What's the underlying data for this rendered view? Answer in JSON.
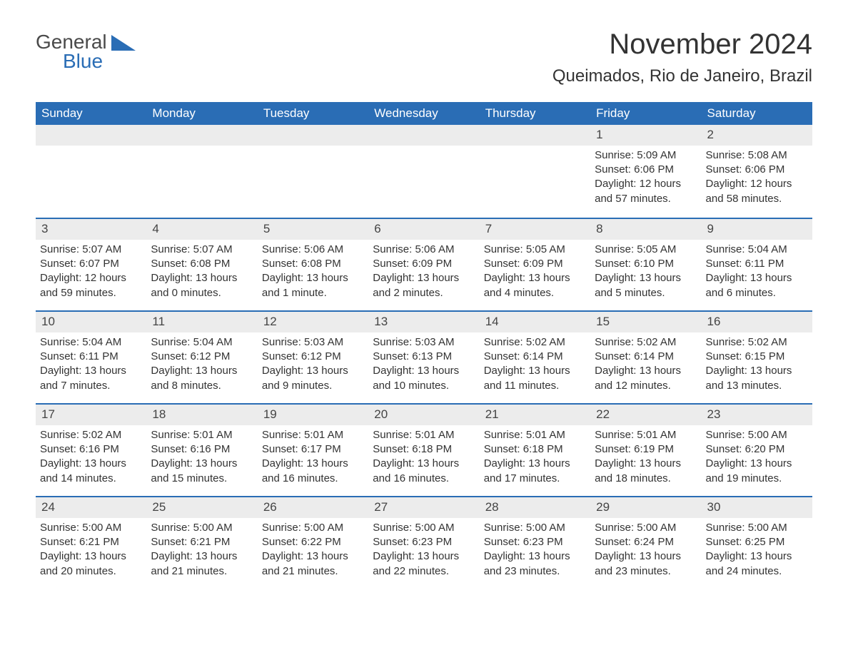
{
  "logo": {
    "word1": "General",
    "word2": "Blue"
  },
  "title": "November 2024",
  "location": "Queimados, Rio de Janeiro, Brazil",
  "colors": {
    "header_bg": "#2a6db5",
    "header_text": "#ffffff",
    "daynum_bg": "#ececec",
    "rule": "#2a6db5",
    "body_text": "#333333",
    "logo_blue": "#2a6db5"
  },
  "day_headers": [
    "Sunday",
    "Monday",
    "Tuesday",
    "Wednesday",
    "Thursday",
    "Friday",
    "Saturday"
  ],
  "weeks": [
    [
      {
        "n": "",
        "sr": "",
        "ss": "",
        "dl": ""
      },
      {
        "n": "",
        "sr": "",
        "ss": "",
        "dl": ""
      },
      {
        "n": "",
        "sr": "",
        "ss": "",
        "dl": ""
      },
      {
        "n": "",
        "sr": "",
        "ss": "",
        "dl": ""
      },
      {
        "n": "",
        "sr": "",
        "ss": "",
        "dl": ""
      },
      {
        "n": "1",
        "sr": "Sunrise: 5:09 AM",
        "ss": "Sunset: 6:06 PM",
        "dl": "Daylight: 12 hours and 57 minutes."
      },
      {
        "n": "2",
        "sr": "Sunrise: 5:08 AM",
        "ss": "Sunset: 6:06 PM",
        "dl": "Daylight: 12 hours and 58 minutes."
      }
    ],
    [
      {
        "n": "3",
        "sr": "Sunrise: 5:07 AM",
        "ss": "Sunset: 6:07 PM",
        "dl": "Daylight: 12 hours and 59 minutes."
      },
      {
        "n": "4",
        "sr": "Sunrise: 5:07 AM",
        "ss": "Sunset: 6:08 PM",
        "dl": "Daylight: 13 hours and 0 minutes."
      },
      {
        "n": "5",
        "sr": "Sunrise: 5:06 AM",
        "ss": "Sunset: 6:08 PM",
        "dl": "Daylight: 13 hours and 1 minute."
      },
      {
        "n": "6",
        "sr": "Sunrise: 5:06 AM",
        "ss": "Sunset: 6:09 PM",
        "dl": "Daylight: 13 hours and 2 minutes."
      },
      {
        "n": "7",
        "sr": "Sunrise: 5:05 AM",
        "ss": "Sunset: 6:09 PM",
        "dl": "Daylight: 13 hours and 4 minutes."
      },
      {
        "n": "8",
        "sr": "Sunrise: 5:05 AM",
        "ss": "Sunset: 6:10 PM",
        "dl": "Daylight: 13 hours and 5 minutes."
      },
      {
        "n": "9",
        "sr": "Sunrise: 5:04 AM",
        "ss": "Sunset: 6:11 PM",
        "dl": "Daylight: 13 hours and 6 minutes."
      }
    ],
    [
      {
        "n": "10",
        "sr": "Sunrise: 5:04 AM",
        "ss": "Sunset: 6:11 PM",
        "dl": "Daylight: 13 hours and 7 minutes."
      },
      {
        "n": "11",
        "sr": "Sunrise: 5:04 AM",
        "ss": "Sunset: 6:12 PM",
        "dl": "Daylight: 13 hours and 8 minutes."
      },
      {
        "n": "12",
        "sr": "Sunrise: 5:03 AM",
        "ss": "Sunset: 6:12 PM",
        "dl": "Daylight: 13 hours and 9 minutes."
      },
      {
        "n": "13",
        "sr": "Sunrise: 5:03 AM",
        "ss": "Sunset: 6:13 PM",
        "dl": "Daylight: 13 hours and 10 minutes."
      },
      {
        "n": "14",
        "sr": "Sunrise: 5:02 AM",
        "ss": "Sunset: 6:14 PM",
        "dl": "Daylight: 13 hours and 11 minutes."
      },
      {
        "n": "15",
        "sr": "Sunrise: 5:02 AM",
        "ss": "Sunset: 6:14 PM",
        "dl": "Daylight: 13 hours and 12 minutes."
      },
      {
        "n": "16",
        "sr": "Sunrise: 5:02 AM",
        "ss": "Sunset: 6:15 PM",
        "dl": "Daylight: 13 hours and 13 minutes."
      }
    ],
    [
      {
        "n": "17",
        "sr": "Sunrise: 5:02 AM",
        "ss": "Sunset: 6:16 PM",
        "dl": "Daylight: 13 hours and 14 minutes."
      },
      {
        "n": "18",
        "sr": "Sunrise: 5:01 AM",
        "ss": "Sunset: 6:16 PM",
        "dl": "Daylight: 13 hours and 15 minutes."
      },
      {
        "n": "19",
        "sr": "Sunrise: 5:01 AM",
        "ss": "Sunset: 6:17 PM",
        "dl": "Daylight: 13 hours and 16 minutes."
      },
      {
        "n": "20",
        "sr": "Sunrise: 5:01 AM",
        "ss": "Sunset: 6:18 PM",
        "dl": "Daylight: 13 hours and 16 minutes."
      },
      {
        "n": "21",
        "sr": "Sunrise: 5:01 AM",
        "ss": "Sunset: 6:18 PM",
        "dl": "Daylight: 13 hours and 17 minutes."
      },
      {
        "n": "22",
        "sr": "Sunrise: 5:01 AM",
        "ss": "Sunset: 6:19 PM",
        "dl": "Daylight: 13 hours and 18 minutes."
      },
      {
        "n": "23",
        "sr": "Sunrise: 5:00 AM",
        "ss": "Sunset: 6:20 PM",
        "dl": "Daylight: 13 hours and 19 minutes."
      }
    ],
    [
      {
        "n": "24",
        "sr": "Sunrise: 5:00 AM",
        "ss": "Sunset: 6:21 PM",
        "dl": "Daylight: 13 hours and 20 minutes."
      },
      {
        "n": "25",
        "sr": "Sunrise: 5:00 AM",
        "ss": "Sunset: 6:21 PM",
        "dl": "Daylight: 13 hours and 21 minutes."
      },
      {
        "n": "26",
        "sr": "Sunrise: 5:00 AM",
        "ss": "Sunset: 6:22 PM",
        "dl": "Daylight: 13 hours and 21 minutes."
      },
      {
        "n": "27",
        "sr": "Sunrise: 5:00 AM",
        "ss": "Sunset: 6:23 PM",
        "dl": "Daylight: 13 hours and 22 minutes."
      },
      {
        "n": "28",
        "sr": "Sunrise: 5:00 AM",
        "ss": "Sunset: 6:23 PM",
        "dl": "Daylight: 13 hours and 23 minutes."
      },
      {
        "n": "29",
        "sr": "Sunrise: 5:00 AM",
        "ss": "Sunset: 6:24 PM",
        "dl": "Daylight: 13 hours and 23 minutes."
      },
      {
        "n": "30",
        "sr": "Sunrise: 5:00 AM",
        "ss": "Sunset: 6:25 PM",
        "dl": "Daylight: 13 hours and 24 minutes."
      }
    ]
  ]
}
